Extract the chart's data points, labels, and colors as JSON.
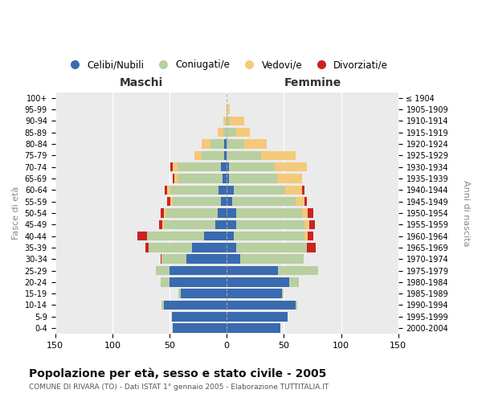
{
  "age_groups": [
    "100+",
    "95-99",
    "90-94",
    "85-89",
    "80-84",
    "75-79",
    "70-74",
    "65-69",
    "60-64",
    "55-59",
    "50-54",
    "45-49",
    "40-44",
    "35-39",
    "30-34",
    "25-29",
    "20-24",
    "15-19",
    "10-14",
    "5-9",
    "0-4"
  ],
  "birth_years": [
    "≤ 1904",
    "1905-1909",
    "1910-1914",
    "1915-1919",
    "1920-1924",
    "1925-1929",
    "1930-1934",
    "1935-1939",
    "1940-1944",
    "1945-1949",
    "1950-1954",
    "1955-1959",
    "1960-1964",
    "1965-1969",
    "1970-1974",
    "1975-1979",
    "1980-1984",
    "1985-1989",
    "1990-1994",
    "1995-1999",
    "2000-2004"
  ],
  "colors": {
    "celibi": "#3a6ab0",
    "coniugati": "#b8cfa0",
    "vedovi": "#f5c97a",
    "divorziati": "#cc2222"
  },
  "maschi": {
    "celibi": [
      0,
      0,
      0,
      0,
      2,
      2,
      5,
      4,
      7,
      5,
      8,
      10,
      20,
      30,
      35,
      50,
      50,
      40,
      55,
      48,
      47
    ],
    "coniugati": [
      0,
      0,
      0,
      3,
      12,
      20,
      38,
      38,
      42,
      42,
      45,
      45,
      50,
      38,
      22,
      12,
      8,
      2,
      2,
      0,
      0
    ],
    "vedovi": [
      0,
      0,
      3,
      5,
      8,
      6,
      4,
      4,
      3,
      2,
      2,
      1,
      0,
      0,
      0,
      0,
      0,
      0,
      0,
      0,
      0
    ],
    "divorziati": [
      0,
      0,
      0,
      0,
      0,
      0,
      2,
      1,
      2,
      3,
      3,
      3,
      8,
      3,
      1,
      0,
      0,
      0,
      0,
      0,
      0
    ]
  },
  "femmine": {
    "celibi": [
      0,
      0,
      0,
      0,
      0,
      0,
      2,
      2,
      6,
      5,
      8,
      8,
      6,
      8,
      12,
      45,
      55,
      48,
      60,
      53,
      47
    ],
    "coniugati": [
      0,
      0,
      3,
      8,
      15,
      30,
      40,
      42,
      45,
      55,
      58,
      60,
      62,
      62,
      55,
      35,
      8,
      2,
      2,
      0,
      0
    ],
    "vedovi": [
      0,
      3,
      12,
      12,
      20,
      30,
      28,
      22,
      15,
      8,
      5,
      4,
      3,
      0,
      0,
      0,
      0,
      0,
      0,
      0,
      0
    ],
    "divorziati": [
      0,
      0,
      0,
      0,
      0,
      0,
      0,
      0,
      2,
      2,
      5,
      5,
      5,
      8,
      0,
      0,
      0,
      0,
      0,
      0,
      0
    ]
  },
  "title": "Popolazione per età, sesso e stato civile - 2005",
  "subtitle": "COMUNE DI RIVARA (TO) - Dati ISTAT 1° gennaio 2005 - Elaborazione TUTTITALIA.IT",
  "xlabel_left": "Maschi",
  "xlabel_right": "Femmine",
  "ylabel_left": "Fasce di età",
  "ylabel_right": "Anni di nascita",
  "xlim": 150,
  "legend_labels": [
    "Celibi/Nubili",
    "Coniugati/e",
    "Vedovi/e",
    "Divorziati/e"
  ],
  "background_color": "#ffffff",
  "plot_bg_color": "#ebebeb"
}
